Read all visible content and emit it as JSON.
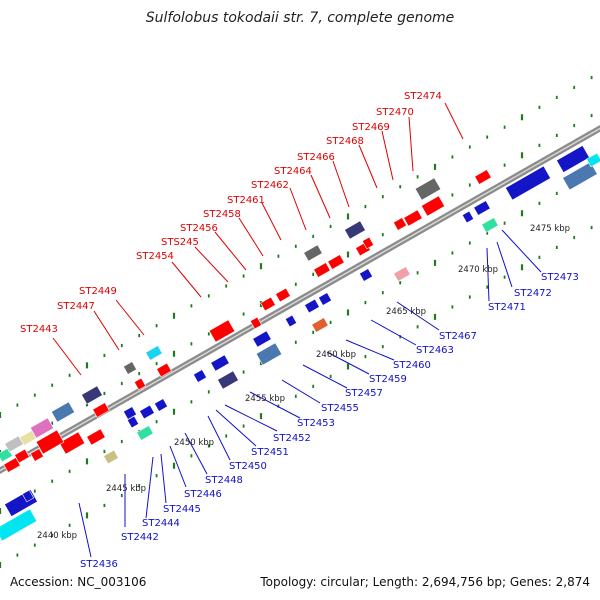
{
  "title": "Sulfolobus tokodaii str. 7, complete genome",
  "footer": {
    "accession": "Accession: NC_003106",
    "topology": "Topology: circular; Length: 2,694,756 bp; Genes: 2,874"
  },
  "colors": {
    "backbone": "#8a8a8a",
    "tick": "#1f7a1f",
    "upper_label": "#e00000",
    "lower_label": "#1010c8"
  },
  "scale_labels": [
    "2440 kbp",
    "2445 kbp",
    "2450 kbp",
    "2455 kbp",
    "2460 kbp",
    "2465 kbp",
    "2470 kbp",
    "2475 kbp"
  ],
  "upper_genes": [
    "ST2443",
    "ST2447",
    "ST2449",
    "ST2454",
    "STS245",
    "ST2456",
    "ST2458",
    "ST2461",
    "ST2462",
    "ST2464",
    "ST2466",
    "ST2468",
    "ST2469",
    "ST2470",
    "ST2474"
  ],
  "lower_genes": [
    "ST2436",
    "ST2442",
    "ST2444",
    "ST2445",
    "ST2446",
    "ST2448",
    "ST2450",
    "ST2451",
    "ST2452",
    "ST2453",
    "ST2455",
    "ST2457",
    "ST2459",
    "ST2460",
    "ST2463",
    "ST2467",
    "ST2471",
    "ST2472",
    "ST2473"
  ]
}
